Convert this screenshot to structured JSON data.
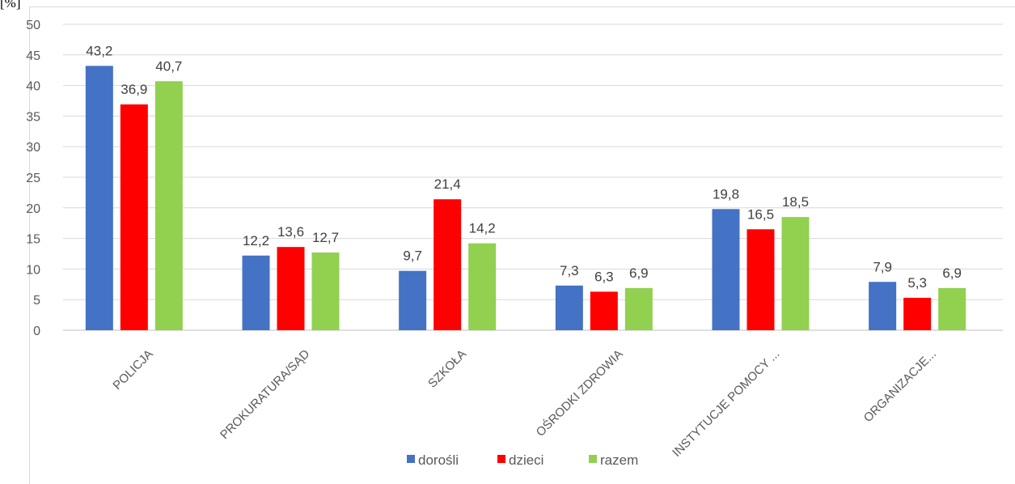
{
  "chart_data": {
    "type": "bar",
    "ylabel": "[%]",
    "categories": [
      "POLICJA",
      "PROKURATURA/SĄD",
      "SZKOŁA",
      "OŚRODKI ZDROWIA",
      "INSTYTUCJE POMOCY ...",
      "ORGANIZACJE..."
    ],
    "series": [
      {
        "name": "dorośli",
        "color": "#4472c4",
        "values": [
          43.2,
          12.2,
          9.7,
          7.3,
          19.8,
          7.9
        ],
        "labels": [
          "43,2",
          "12,2",
          "9,7",
          "7,3",
          "19,8",
          "7,9"
        ]
      },
      {
        "name": "dzieci",
        "color": "#ff0000",
        "values": [
          36.9,
          13.6,
          21.4,
          6.3,
          16.5,
          5.3
        ],
        "labels": [
          "36,9",
          "13,6",
          "21,4",
          "6,3",
          "16,5",
          "5,3"
        ]
      },
      {
        "name": "razem",
        "color": "#92d050",
        "values": [
          40.7,
          12.7,
          14.2,
          6.9,
          18.5,
          6.9
        ],
        "labels": [
          "40,7",
          "12,7",
          "14,2",
          "6,9",
          "18,5",
          "6,9"
        ]
      }
    ],
    "ylim": [
      0,
      50
    ],
    "yticks": [
      0,
      5,
      10,
      15,
      20,
      25,
      30,
      35,
      40,
      45,
      50
    ],
    "grid": true,
    "legend": "bottom"
  }
}
